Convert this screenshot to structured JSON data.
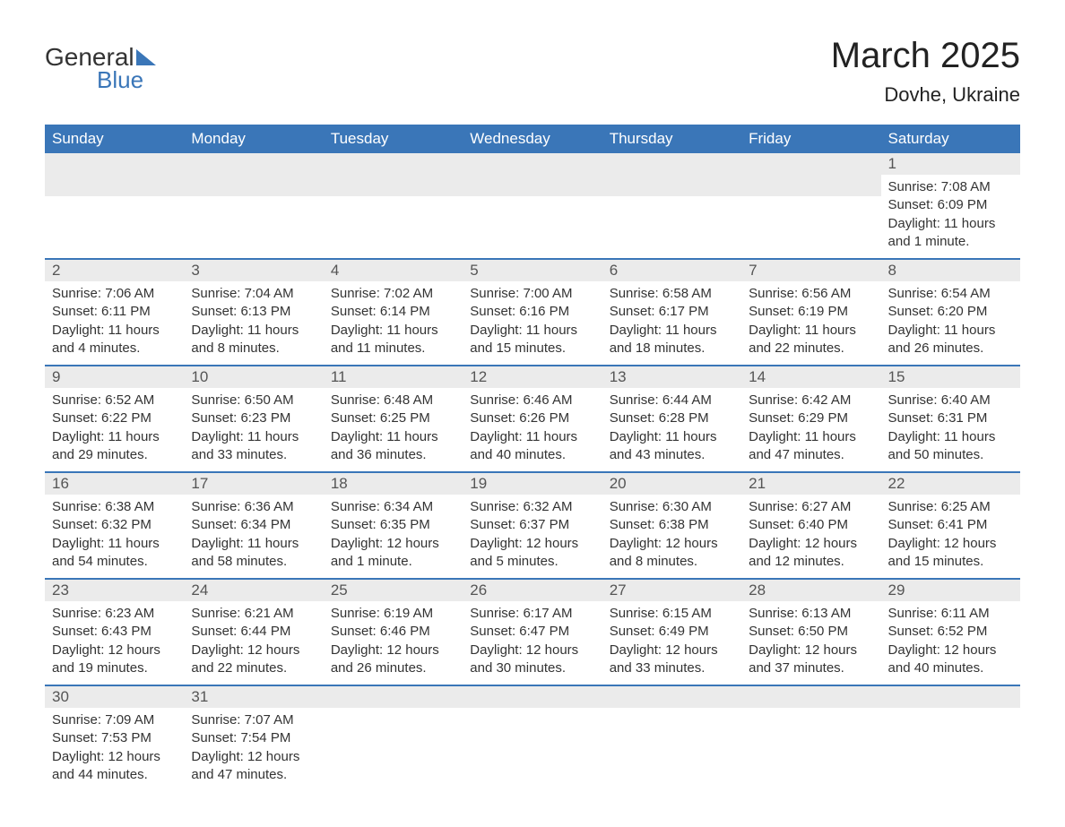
{
  "logo": {
    "text1": "General",
    "text2": "Blue"
  },
  "header": {
    "month_title": "March 2025",
    "location": "Dovhe, Ukraine"
  },
  "colors": {
    "header_bg": "#3a76b8",
    "header_text": "#ffffff",
    "day_header_bg": "#ebebeb",
    "day_number_color": "#555555",
    "body_text": "#333333",
    "border": "#3a76b8"
  },
  "weekdays": [
    "Sunday",
    "Monday",
    "Tuesday",
    "Wednesday",
    "Thursday",
    "Friday",
    "Saturday"
  ],
  "weeks": [
    [
      null,
      null,
      null,
      null,
      null,
      null,
      {
        "day": "1",
        "sunrise": "Sunrise: 7:08 AM",
        "sunset": "Sunset: 6:09 PM",
        "daylight1": "Daylight: 11 hours",
        "daylight2": "and 1 minute."
      }
    ],
    [
      {
        "day": "2",
        "sunrise": "Sunrise: 7:06 AM",
        "sunset": "Sunset: 6:11 PM",
        "daylight1": "Daylight: 11 hours",
        "daylight2": "and 4 minutes."
      },
      {
        "day": "3",
        "sunrise": "Sunrise: 7:04 AM",
        "sunset": "Sunset: 6:13 PM",
        "daylight1": "Daylight: 11 hours",
        "daylight2": "and 8 minutes."
      },
      {
        "day": "4",
        "sunrise": "Sunrise: 7:02 AM",
        "sunset": "Sunset: 6:14 PM",
        "daylight1": "Daylight: 11 hours",
        "daylight2": "and 11 minutes."
      },
      {
        "day": "5",
        "sunrise": "Sunrise: 7:00 AM",
        "sunset": "Sunset: 6:16 PM",
        "daylight1": "Daylight: 11 hours",
        "daylight2": "and 15 minutes."
      },
      {
        "day": "6",
        "sunrise": "Sunrise: 6:58 AM",
        "sunset": "Sunset: 6:17 PM",
        "daylight1": "Daylight: 11 hours",
        "daylight2": "and 18 minutes."
      },
      {
        "day": "7",
        "sunrise": "Sunrise: 6:56 AM",
        "sunset": "Sunset: 6:19 PM",
        "daylight1": "Daylight: 11 hours",
        "daylight2": "and 22 minutes."
      },
      {
        "day": "8",
        "sunrise": "Sunrise: 6:54 AM",
        "sunset": "Sunset: 6:20 PM",
        "daylight1": "Daylight: 11 hours",
        "daylight2": "and 26 minutes."
      }
    ],
    [
      {
        "day": "9",
        "sunrise": "Sunrise: 6:52 AM",
        "sunset": "Sunset: 6:22 PM",
        "daylight1": "Daylight: 11 hours",
        "daylight2": "and 29 minutes."
      },
      {
        "day": "10",
        "sunrise": "Sunrise: 6:50 AM",
        "sunset": "Sunset: 6:23 PM",
        "daylight1": "Daylight: 11 hours",
        "daylight2": "and 33 minutes."
      },
      {
        "day": "11",
        "sunrise": "Sunrise: 6:48 AM",
        "sunset": "Sunset: 6:25 PM",
        "daylight1": "Daylight: 11 hours",
        "daylight2": "and 36 minutes."
      },
      {
        "day": "12",
        "sunrise": "Sunrise: 6:46 AM",
        "sunset": "Sunset: 6:26 PM",
        "daylight1": "Daylight: 11 hours",
        "daylight2": "and 40 minutes."
      },
      {
        "day": "13",
        "sunrise": "Sunrise: 6:44 AM",
        "sunset": "Sunset: 6:28 PM",
        "daylight1": "Daylight: 11 hours",
        "daylight2": "and 43 minutes."
      },
      {
        "day": "14",
        "sunrise": "Sunrise: 6:42 AM",
        "sunset": "Sunset: 6:29 PM",
        "daylight1": "Daylight: 11 hours",
        "daylight2": "and 47 minutes."
      },
      {
        "day": "15",
        "sunrise": "Sunrise: 6:40 AM",
        "sunset": "Sunset: 6:31 PM",
        "daylight1": "Daylight: 11 hours",
        "daylight2": "and 50 minutes."
      }
    ],
    [
      {
        "day": "16",
        "sunrise": "Sunrise: 6:38 AM",
        "sunset": "Sunset: 6:32 PM",
        "daylight1": "Daylight: 11 hours",
        "daylight2": "and 54 minutes."
      },
      {
        "day": "17",
        "sunrise": "Sunrise: 6:36 AM",
        "sunset": "Sunset: 6:34 PM",
        "daylight1": "Daylight: 11 hours",
        "daylight2": "and 58 minutes."
      },
      {
        "day": "18",
        "sunrise": "Sunrise: 6:34 AM",
        "sunset": "Sunset: 6:35 PM",
        "daylight1": "Daylight: 12 hours",
        "daylight2": "and 1 minute."
      },
      {
        "day": "19",
        "sunrise": "Sunrise: 6:32 AM",
        "sunset": "Sunset: 6:37 PM",
        "daylight1": "Daylight: 12 hours",
        "daylight2": "and 5 minutes."
      },
      {
        "day": "20",
        "sunrise": "Sunrise: 6:30 AM",
        "sunset": "Sunset: 6:38 PM",
        "daylight1": "Daylight: 12 hours",
        "daylight2": "and 8 minutes."
      },
      {
        "day": "21",
        "sunrise": "Sunrise: 6:27 AM",
        "sunset": "Sunset: 6:40 PM",
        "daylight1": "Daylight: 12 hours",
        "daylight2": "and 12 minutes."
      },
      {
        "day": "22",
        "sunrise": "Sunrise: 6:25 AM",
        "sunset": "Sunset: 6:41 PM",
        "daylight1": "Daylight: 12 hours",
        "daylight2": "and 15 minutes."
      }
    ],
    [
      {
        "day": "23",
        "sunrise": "Sunrise: 6:23 AM",
        "sunset": "Sunset: 6:43 PM",
        "daylight1": "Daylight: 12 hours",
        "daylight2": "and 19 minutes."
      },
      {
        "day": "24",
        "sunrise": "Sunrise: 6:21 AM",
        "sunset": "Sunset: 6:44 PM",
        "daylight1": "Daylight: 12 hours",
        "daylight2": "and 22 minutes."
      },
      {
        "day": "25",
        "sunrise": "Sunrise: 6:19 AM",
        "sunset": "Sunset: 6:46 PM",
        "daylight1": "Daylight: 12 hours",
        "daylight2": "and 26 minutes."
      },
      {
        "day": "26",
        "sunrise": "Sunrise: 6:17 AM",
        "sunset": "Sunset: 6:47 PM",
        "daylight1": "Daylight: 12 hours",
        "daylight2": "and 30 minutes."
      },
      {
        "day": "27",
        "sunrise": "Sunrise: 6:15 AM",
        "sunset": "Sunset: 6:49 PM",
        "daylight1": "Daylight: 12 hours",
        "daylight2": "and 33 minutes."
      },
      {
        "day": "28",
        "sunrise": "Sunrise: 6:13 AM",
        "sunset": "Sunset: 6:50 PM",
        "daylight1": "Daylight: 12 hours",
        "daylight2": "and 37 minutes."
      },
      {
        "day": "29",
        "sunrise": "Sunrise: 6:11 AM",
        "sunset": "Sunset: 6:52 PM",
        "daylight1": "Daylight: 12 hours",
        "daylight2": "and 40 minutes."
      }
    ],
    [
      {
        "day": "30",
        "sunrise": "Sunrise: 7:09 AM",
        "sunset": "Sunset: 7:53 PM",
        "daylight1": "Daylight: 12 hours",
        "daylight2": "and 44 minutes."
      },
      {
        "day": "31",
        "sunrise": "Sunrise: 7:07 AM",
        "sunset": "Sunset: 7:54 PM",
        "daylight1": "Daylight: 12 hours",
        "daylight2": "and 47 minutes."
      },
      null,
      null,
      null,
      null,
      null
    ]
  ]
}
